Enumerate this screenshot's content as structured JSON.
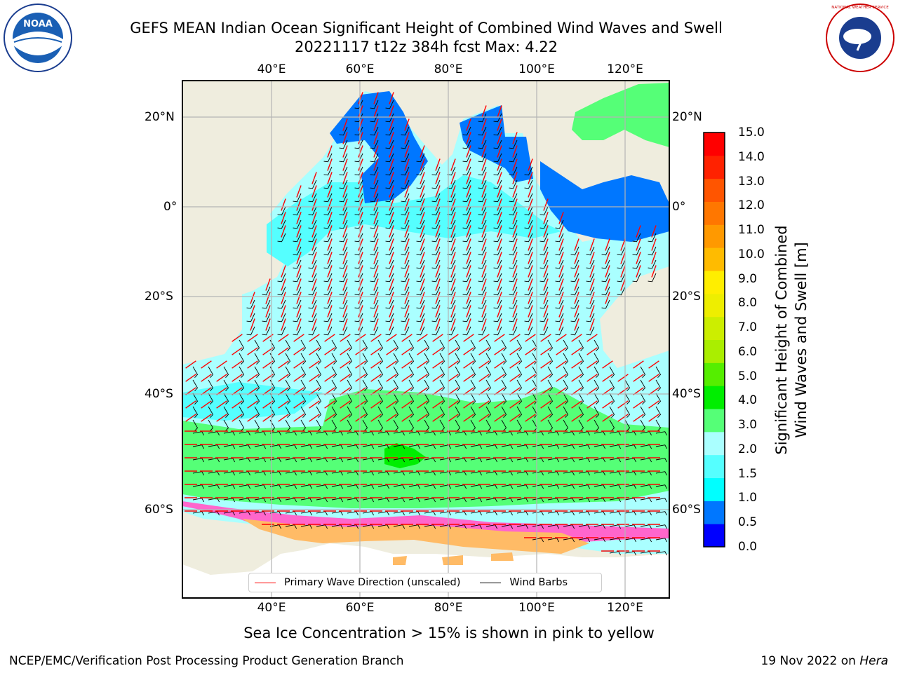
{
  "title_line1": "GEFS MEAN Indian Ocean Significant Height of Combined Wind Waves and Swell",
  "title_line2": "20221117 t12z 384h fcst   Max: 4.22",
  "logos": {
    "left": {
      "name": "noaa-logo",
      "text": "NOAA"
    },
    "right": {
      "name": "nws-logo",
      "text": "NATIONAL WEATHER SERVICE"
    }
  },
  "map": {
    "lon_ticks": [
      "40°E",
      "60°E",
      "80°E",
      "100°E",
      "120°E"
    ],
    "lat_ticks": [
      "20°N",
      "0°",
      "20°S",
      "40°S",
      "60°S"
    ]
  },
  "colorbar": {
    "ticks": [
      "15.0",
      "14.0",
      "13.0",
      "12.0",
      "11.0",
      "10.0",
      "9.0",
      "8.0",
      "7.0",
      "6.0",
      "5.0",
      "4.0",
      "3.0",
      "2.0",
      "1.5",
      "1.0",
      "0.5",
      "0.0"
    ],
    "colors": [
      "#0000ff",
      "#0077ff",
      "#00ffff",
      "#55ffff",
      "#aaffff",
      "#55ff77",
      "#00ee00",
      "#55ee00",
      "#aaee00",
      "#ccee00",
      "#eeee00",
      "#ffee00",
      "#ffbb00",
      "#ff9900",
      "#ff7700",
      "#ff5500",
      "#ff2200",
      "#ff0000"
    ],
    "label_line1": "Significant Height of Combined",
    "label_line2": "Wind Waves and Swell [m]"
  },
  "legend": {
    "wave_label": "Primary Wave Direction (unscaled)",
    "wave_color": "#ff0000",
    "barb_label": "Wind Barbs",
    "barb_color": "#000000"
  },
  "caption": "Sea Ice Concentration > 15% is shown in pink to yellow",
  "footer_left": "NCEP/EMC/Verification Post Processing Product Generation Branch",
  "footer_right_prefix": "19 Nov 2022 on",
  "footer_right_host": "Hera"
}
